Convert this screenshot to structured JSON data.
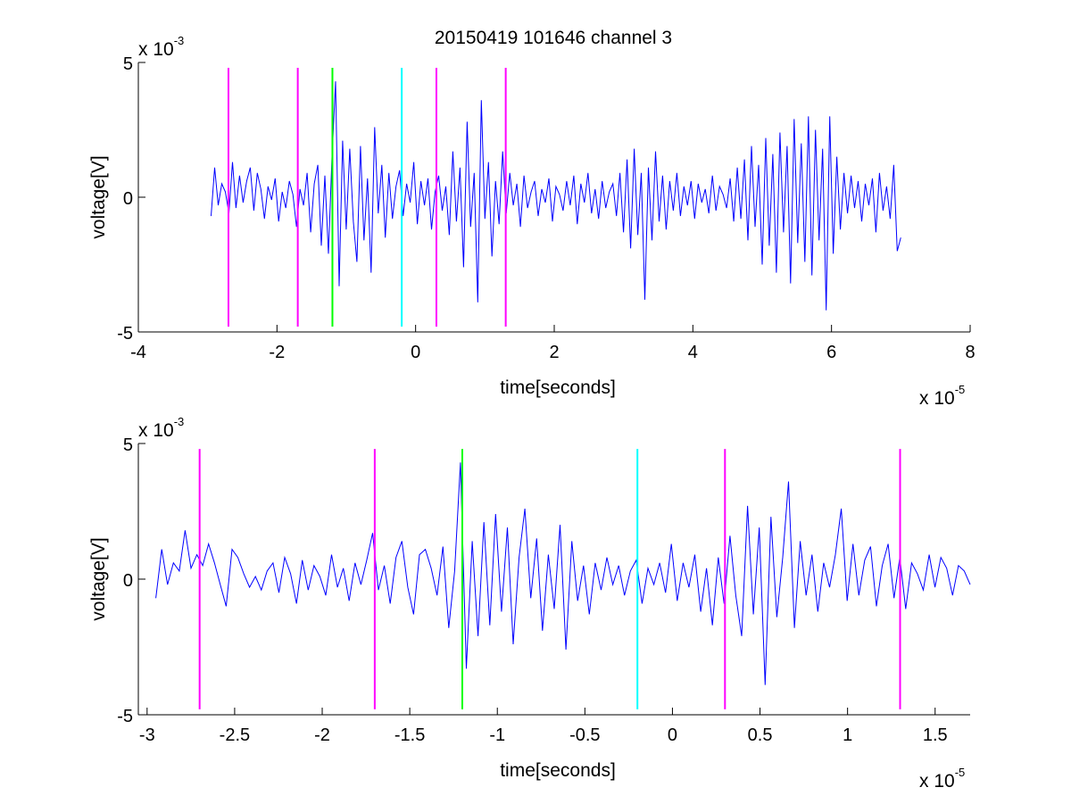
{
  "figure": {
    "title": "20150419 101646 channel 3"
  },
  "colors": {
    "signal": "#0000ff",
    "magenta": "#ff00ff",
    "green": "#00ff00",
    "cyan": "#00ffff",
    "axis": "#000000"
  },
  "chart_data": [
    {
      "type": "line",
      "title": "20150419 101646 channel 3",
      "xlabel": "time[seconds]",
      "ylabel": "voltage[V]",
      "x_multiplier": "x 10",
      "x_multiplier_exponent": "-5",
      "y_multiplier": "x 10",
      "y_multiplier_exponent": "-3",
      "xlim": [
        -4,
        8
      ],
      "ylim": [
        -5,
        5
      ],
      "xticks": [
        -4,
        -2,
        0,
        2,
        4,
        6,
        8
      ],
      "xtick_labels": [
        "-4",
        "-2",
        "0",
        "2",
        "4",
        "6",
        "8"
      ],
      "yticks": [
        -5,
        0,
        5
      ],
      "ytick_labels": [
        "-5",
        "0",
        "5"
      ],
      "grid": false,
      "series": [
        {
          "color": "#0000ff",
          "x_range": [
            -2.95,
            7.0
          ],
          "y": [
            -0.7,
            1.1,
            -0.3,
            0.5,
            0.2,
            -0.6,
            1.3,
            -0.4,
            0.8,
            -0.2,
            0.6,
            1.1,
            -0.5,
            0.9,
            0.3,
            -0.8,
            0.4,
            -0.1,
            0.7,
            -0.9,
            0.2,
            -0.4,
            0.6,
            0.1,
            -1.1,
            0.3,
            -0.3,
            0.9,
            -1.3,
            0.5,
            1.2,
            -1.8,
            0.8,
            -2.1,
            1.5,
            4.3,
            -3.3,
            2.1,
            -1.2,
            1.8,
            -0.9,
            -2.4,
            1.9,
            -1.6,
            0.7,
            -2.8,
            2.6,
            -0.6,
            1.2,
            -1.5,
            0.9,
            -0.8,
            0.4,
            1.0,
            -0.7,
            0.5,
            -0.2,
            1.3,
            -1.0,
            0.6,
            -0.3,
            0.7,
            -1.2,
            0.2,
            0.8,
            -0.5,
            0.4,
            -1.4,
            1.7,
            -0.9,
            1.1,
            -2.6,
            2.8,
            -1.1,
            0.9,
            -3.9,
            3.6,
            -0.8,
            1.3,
            -2.2,
            0.6,
            -1.0,
            1.7,
            -0.6,
            0.9,
            -0.3,
            0.5,
            -1.1,
            0.8,
            -0.4,
            0.2,
            0.6,
            -0.7,
            0.3,
            -0.2,
            0.7,
            -0.9,
            0.4,
            0.1,
            -0.5,
            0.6,
            -0.3,
            0.8,
            -1.0,
            0.5,
            -0.2,
            0.9,
            -0.6,
            0.3,
            -0.8,
            0.6,
            -0.4,
            0.2,
            0.5,
            -0.7,
            0.9,
            -1.3,
            1.4,
            -1.9,
            1.8,
            -1.4,
            0.9,
            -3.8,
            1.1,
            -1.6,
            1.7,
            -0.9,
            0.8,
            -1.2,
            0.6,
            -0.5,
            0.9,
            -0.7,
            0.4,
            -0.3,
            0.6,
            -0.8,
            0.5,
            -0.2,
            0.3,
            -0.6,
            0.8,
            -0.5,
            0.4,
            0.1,
            -0.4,
            0.7,
            -0.9,
            1.1,
            -0.8,
            1.4,
            -1.6,
            1.9,
            -1.1,
            1.2,
            -2.5,
            2.2,
            -1.8,
            1.6,
            -2.8,
            2.4,
            -1.3,
            1.9,
            -3.2,
            2.9,
            -1.7,
            2.0,
            -2.4,
            3.0,
            -2.9,
            2.5,
            -1.6,
            1.8,
            -4.2,
            3.0,
            -2.1,
            1.5,
            -1.2,
            0.9,
            -0.6,
            0.8,
            -0.4,
            0.6,
            -0.9,
            0.5,
            -0.3,
            0.7,
            -1.3,
            0.9,
            -0.5,
            0.4,
            -0.8,
            1.2,
            -2.0,
            -1.5
          ]
        }
      ],
      "markers": [
        {
          "x": -2.7,
          "color": "#ff00ff"
        },
        {
          "x": -1.7,
          "color": "#ff00ff"
        },
        {
          "x": -1.2,
          "color": "#00ff00"
        },
        {
          "x": -0.2,
          "color": "#00ffff"
        },
        {
          "x": 0.3,
          "color": "#ff00ff"
        },
        {
          "x": 1.3,
          "color": "#ff00ff"
        }
      ],
      "marker_yrange": [
        -4.8,
        4.8
      ]
    },
    {
      "type": "line",
      "title": "",
      "xlabel": "time[seconds]",
      "ylabel": "voltage[V]",
      "x_multiplier": "x 10",
      "x_multiplier_exponent": "-5",
      "y_multiplier": "x 10",
      "y_multiplier_exponent": "-3",
      "xlim": [
        -3.05,
        1.7
      ],
      "ylim": [
        -5,
        5
      ],
      "xticks": [
        -3,
        -2.5,
        -2,
        -1.5,
        -1,
        -0.5,
        0,
        0.5,
        1,
        1.5
      ],
      "xtick_labels": [
        "-3",
        "-2.5",
        "-2",
        "-1.5",
        "-1",
        "-0.5",
        "0",
        "0.5",
        "1",
        "1.5"
      ],
      "yticks": [
        -5,
        0,
        5
      ],
      "ytick_labels": [
        "-5",
        "0",
        "5"
      ],
      "grid": false,
      "series": [
        {
          "color": "#0000ff",
          "x_range": [
            -2.95,
            1.7
          ],
          "y": [
            -0.7,
            1.1,
            -0.2,
            0.6,
            0.3,
            1.8,
            0.4,
            0.9,
            0.5,
            1.3,
            0.6,
            -0.2,
            -1.0,
            1.1,
            0.8,
            0.2,
            -0.3,
            0.1,
            -0.4,
            0.3,
            0.6,
            -0.5,
            0.8,
            0.2,
            -0.9,
            0.7,
            -0.4,
            0.5,
            0.1,
            -0.6,
            0.9,
            -0.3,
            0.4,
            -0.8,
            0.6,
            -0.2,
            0.7,
            1.7,
            -0.4,
            0.5,
            -0.9,
            0.8,
            1.4,
            -0.3,
            -1.3,
            0.9,
            1.1,
            0.4,
            -0.6,
            1.2,
            -1.8,
            0.3,
            4.3,
            -3.3,
            1.4,
            -2.1,
            2.1,
            -1.7,
            2.4,
            -1.2,
            1.9,
            -2.4,
            0.8,
            2.6,
            -0.7,
            1.5,
            -1.9,
            0.9,
            -1.1,
            2.0,
            -2.6,
            1.4,
            -0.8,
            0.5,
            -1.3,
            0.6,
            -0.4,
            0.8,
            -0.2,
            0.5,
            -0.6,
            0.3,
            0.7,
            -0.9,
            0.4,
            -0.2,
            0.6,
            -0.5,
            1.3,
            -0.8,
            0.6,
            -0.3,
            0.9,
            -1.2,
            0.4,
            -1.7,
            0.8,
            -0.9,
            1.6,
            -0.6,
            -2.1,
            2.7,
            -1.3,
            1.9,
            -3.9,
            2.3,
            -1.4,
            0.8,
            3.6,
            -1.8,
            1.4,
            -0.6,
            0.9,
            -1.2,
            0.6,
            -0.3,
            0.9,
            2.6,
            -0.8,
            1.3,
            -0.6,
            0.7,
            1.2,
            -1.0,
            0.5,
            1.3,
            -0.7,
            0.8,
            -1.1,
            0.6,
            0.2,
            -0.4,
            0.9,
            -0.3,
            0.8,
            0.4,
            -0.6,
            0.5,
            0.3,
            -0.2
          ]
        }
      ],
      "markers": [
        {
          "x": -2.7,
          "color": "#ff00ff"
        },
        {
          "x": -1.7,
          "color": "#ff00ff"
        },
        {
          "x": -1.2,
          "color": "#00ff00"
        },
        {
          "x": -0.2,
          "color": "#00ffff"
        },
        {
          "x": 0.3,
          "color": "#ff00ff"
        },
        {
          "x": 1.3,
          "color": "#ff00ff"
        }
      ],
      "marker_yrange": [
        -4.8,
        4.8
      ]
    }
  ]
}
